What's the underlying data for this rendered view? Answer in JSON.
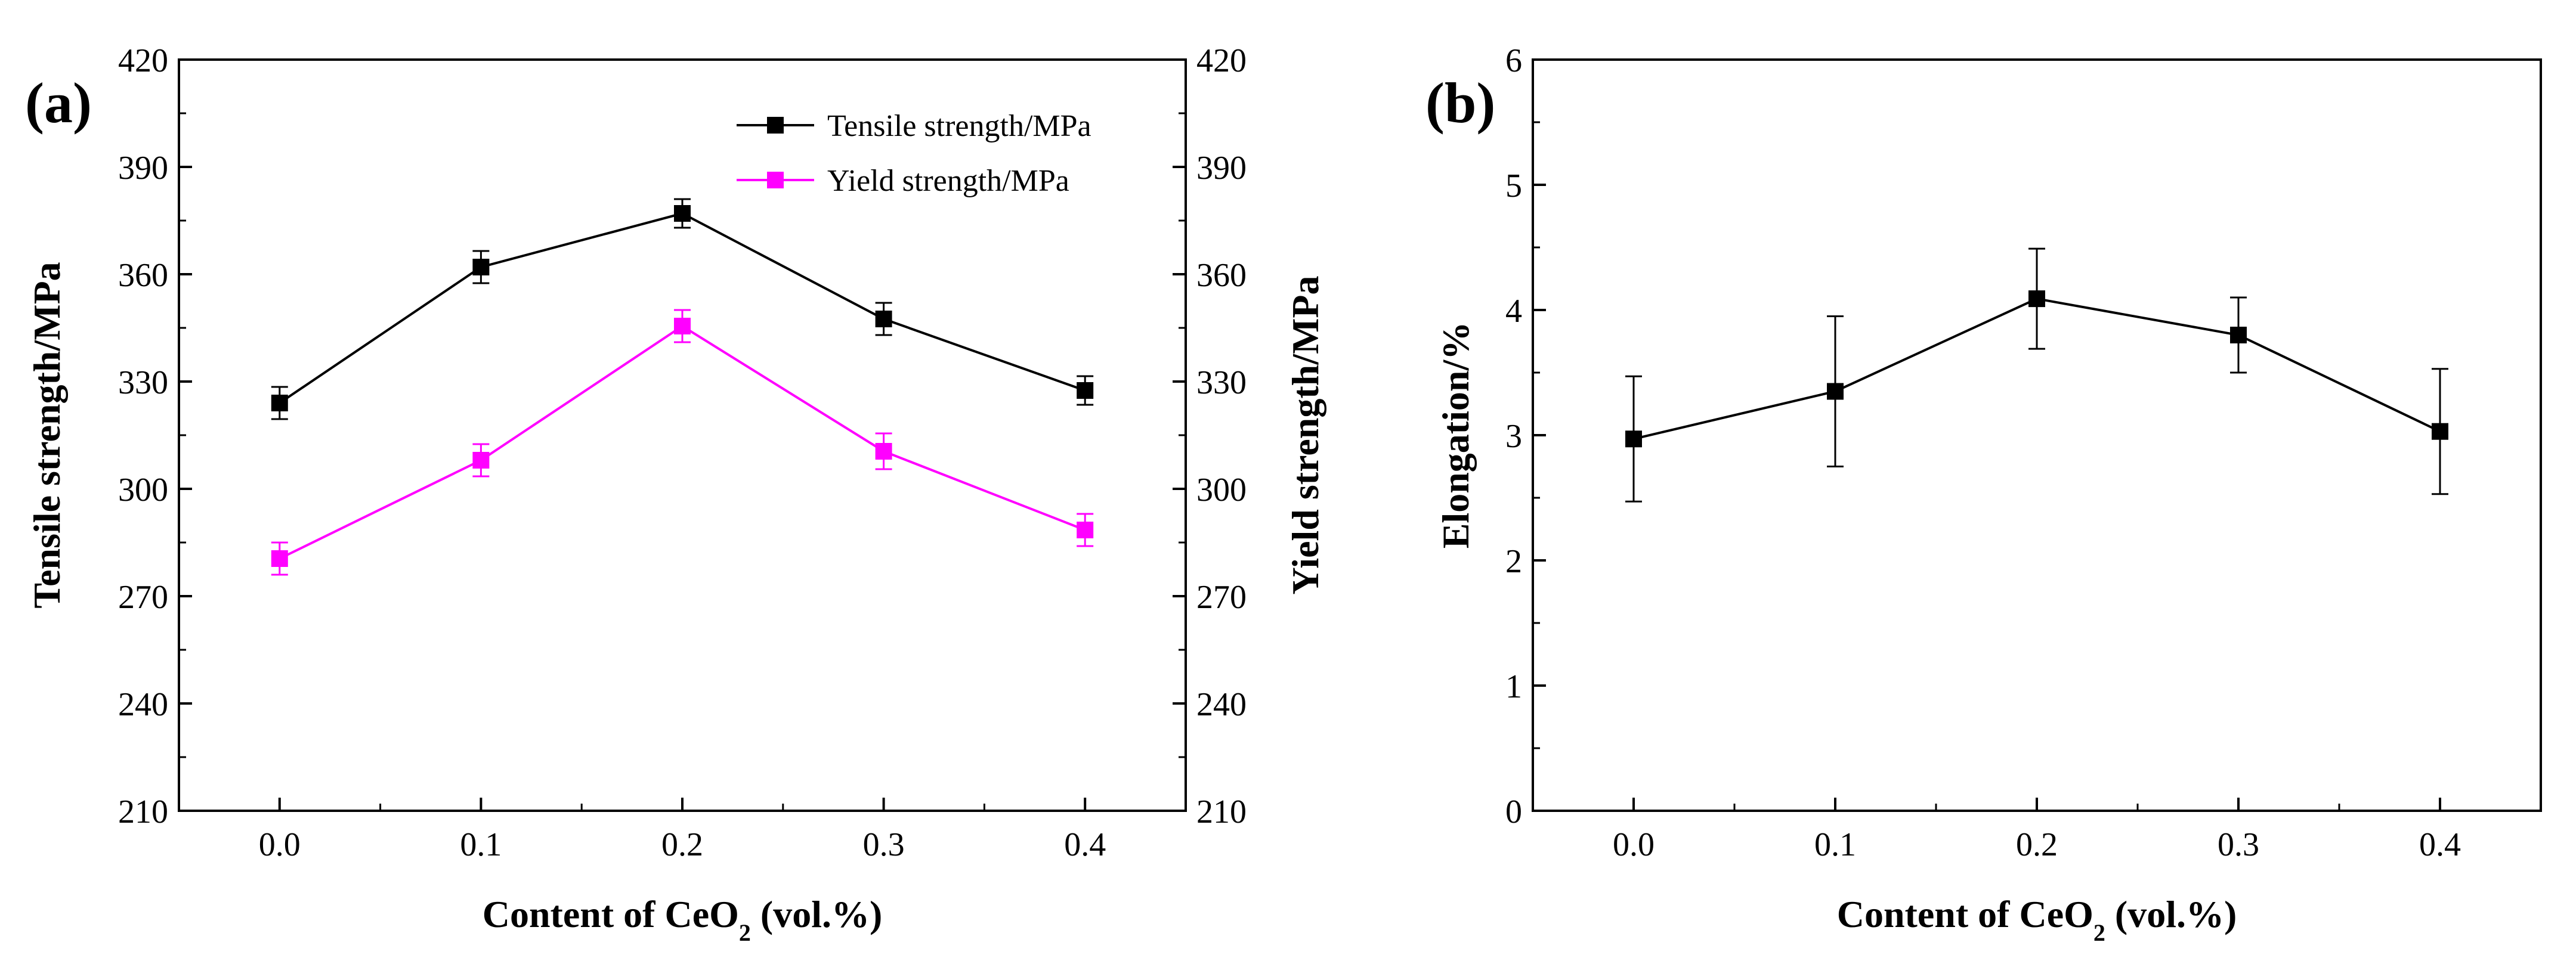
{
  "chart_data": [
    {
      "panel_label": "(a)",
      "type": "line",
      "xlabel_main": "Content of CeO",
      "xlabel_sub": "2",
      "xlabel_tail": " (vol.%)",
      "ylabel": "Tensile strength/MPa",
      "y2label": "Yield strength/MPa",
      "x": [
        0.0,
        0.1,
        0.2,
        0.3,
        0.4
      ],
      "xticks": [
        "0.0",
        "0.1",
        "0.2",
        "0.3",
        "0.4"
      ],
      "xlim": [
        -0.05,
        0.45
      ],
      "ylim": [
        210,
        420
      ],
      "yticks": [
        "210",
        "240",
        "270",
        "300",
        "330",
        "360",
        "390",
        "420"
      ],
      "y2ticks": [
        "210",
        "240",
        "270",
        "300",
        "330",
        "360",
        "390",
        "420"
      ],
      "legend_position": "top-right",
      "series": [
        {
          "name": "Tensile strength/MPa",
          "color": "#000000",
          "values": [
            324,
            362,
            377,
            347.5,
            327.5
          ],
          "errors": [
            4.5,
            4.5,
            4,
            4.5,
            4
          ]
        },
        {
          "name": "Yield strength/MPa",
          "color": "#ff00ff",
          "values": [
            280.5,
            308,
            345.5,
            310.5,
            288.5
          ],
          "errors": [
            4.5,
            4.5,
            4.5,
            5,
            4.5
          ]
        }
      ]
    },
    {
      "panel_label": "(b)",
      "type": "line",
      "xlabel_main": "Content of CeO",
      "xlabel_sub": "2",
      "xlabel_tail": " (vol.%)",
      "ylabel": "Elongation/%",
      "x": [
        0.0,
        0.1,
        0.2,
        0.3,
        0.4
      ],
      "xticks": [
        "0.0",
        "0.1",
        "0.2",
        "0.3",
        "0.4"
      ],
      "xlim": [
        -0.05,
        0.45
      ],
      "ylim": [
        0,
        6
      ],
      "yticks": [
        "0",
        "1",
        "2",
        "3",
        "4",
        "5",
        "6"
      ],
      "series": [
        {
          "name": "Elongation",
          "color": "#000000",
          "values": [
            2.97,
            3.35,
            4.09,
            3.8,
            3.03
          ],
          "errors": [
            0.5,
            0.6,
            0.4,
            0.3,
            0.5
          ]
        }
      ]
    }
  ]
}
